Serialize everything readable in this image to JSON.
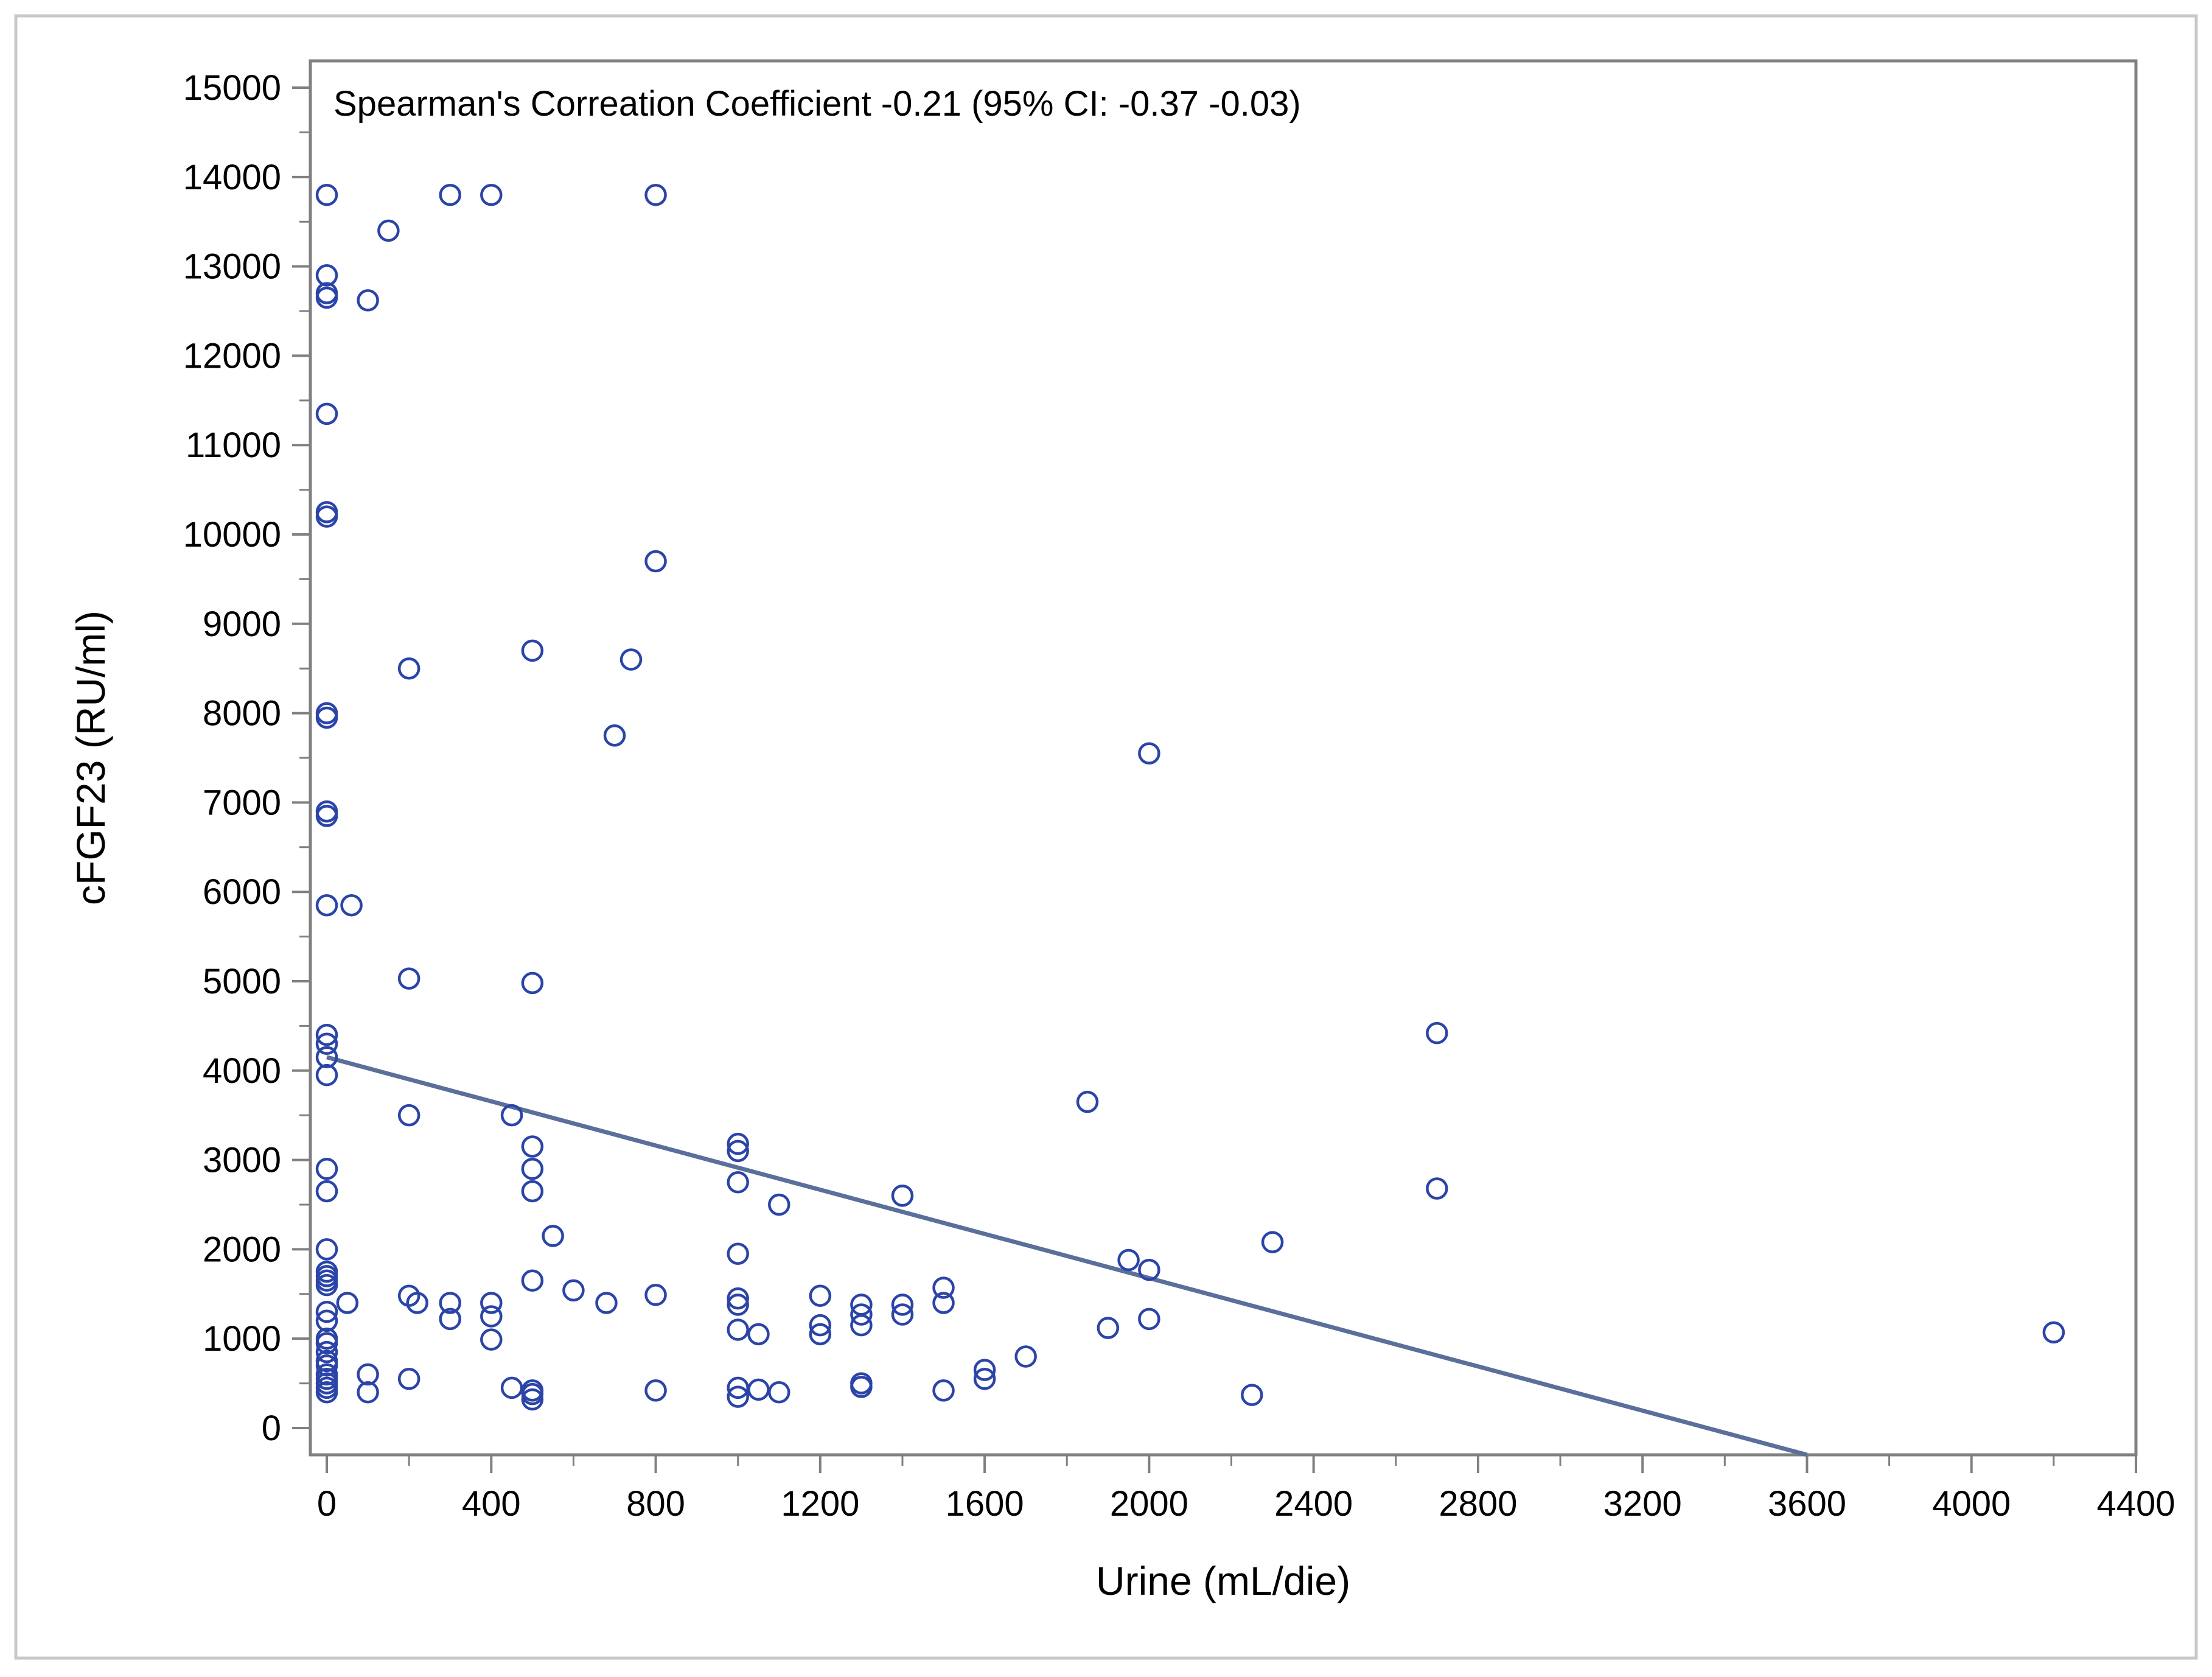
{
  "chart_data": {
    "type": "scatter",
    "title": "",
    "annotation": "Spearman's Correation Coefficient -0.21 (95% CI: -0.37 -0.03)",
    "xlabel": "Urine (mL/die)",
    "ylabel": "cFGF23 (RU/ml)",
    "xlim": [
      -40,
      4400
    ],
    "ylim": [
      -300,
      15300
    ],
    "x_ticks": [
      0,
      400,
      800,
      1200,
      1600,
      2000,
      2400,
      2800,
      3200,
      3600,
      4000,
      4400
    ],
    "x_tick_labels": [
      "0",
      "400",
      "800",
      "1200",
      "1600",
      "2000",
      "2400",
      "2800",
      "3200",
      "3600",
      "4000",
      "4400"
    ],
    "y_ticks": [
      0,
      1000,
      2000,
      3000,
      4000,
      5000,
      6000,
      7000,
      8000,
      9000,
      10000,
      11000,
      12000,
      13000,
      14000,
      15000
    ],
    "y_tick_labels": [
      "0",
      "1000",
      "2000",
      "3000",
      "4000",
      "5000",
      "6000",
      "7000",
      "8000",
      "9000",
      "10000",
      "11000",
      "12000",
      "13000",
      "14000",
      "15000"
    ],
    "grid": false,
    "legend": "none",
    "marker_color": "#2b44a8",
    "line_color": "#5a6f9a",
    "frame_color": "#808080",
    "regression_line": {
      "x": [
        0,
        3600
      ],
      "y": [
        4150,
        -300
      ]
    },
    "points": [
      {
        "x": 0,
        "y": 13800
      },
      {
        "x": 150,
        "y": 13400
      },
      {
        "x": 300,
        "y": 13800
      },
      {
        "x": 400,
        "y": 13800
      },
      {
        "x": 800,
        "y": 13800
      },
      {
        "x": 0,
        "y": 12900
      },
      {
        "x": 0,
        "y": 12700
      },
      {
        "x": 0,
        "y": 12650
      },
      {
        "x": 100,
        "y": 12620
      },
      {
        "x": 0,
        "y": 11350
      },
      {
        "x": 0,
        "y": 10250
      },
      {
        "x": 0,
        "y": 10200
      },
      {
        "x": 800,
        "y": 9700
      },
      {
        "x": 200,
        "y": 8500
      },
      {
        "x": 500,
        "y": 8700
      },
      {
        "x": 740,
        "y": 8600
      },
      {
        "x": 0,
        "y": 8000
      },
      {
        "x": 0,
        "y": 7950
      },
      {
        "x": 700,
        "y": 7750
      },
      {
        "x": 2000,
        "y": 7550
      },
      {
        "x": 0,
        "y": 6900
      },
      {
        "x": 0,
        "y": 6850
      },
      {
        "x": 0,
        "y": 5850
      },
      {
        "x": 60,
        "y": 5850
      },
      {
        "x": 200,
        "y": 5030
      },
      {
        "x": 500,
        "y": 4980
      },
      {
        "x": 2700,
        "y": 4420
      },
      {
        "x": 0,
        "y": 4400
      },
      {
        "x": 0,
        "y": 4300
      },
      {
        "x": 0,
        "y": 4150
      },
      {
        "x": 0,
        "y": 3950
      },
      {
        "x": 1850,
        "y": 3650
      },
      {
        "x": 200,
        "y": 3500
      },
      {
        "x": 450,
        "y": 3500
      },
      {
        "x": 500,
        "y": 3150
      },
      {
        "x": 1000,
        "y": 3180
      },
      {
        "x": 1000,
        "y": 3100
      },
      {
        "x": 0,
        "y": 2900
      },
      {
        "x": 500,
        "y": 2900
      },
      {
        "x": 1000,
        "y": 2750
      },
      {
        "x": 500,
        "y": 2650
      },
      {
        "x": 0,
        "y": 2650
      },
      {
        "x": 2700,
        "y": 2680
      },
      {
        "x": 1400,
        "y": 2600
      },
      {
        "x": 1100,
        "y": 2500
      },
      {
        "x": 550,
        "y": 2150
      },
      {
        "x": 2300,
        "y": 2080
      },
      {
        "x": 0,
        "y": 2000
      },
      {
        "x": 1000,
        "y": 1950
      },
      {
        "x": 1950,
        "y": 1880
      },
      {
        "x": 2000,
        "y": 1770
      },
      {
        "x": 0,
        "y": 1750
      },
      {
        "x": 0,
        "y": 1700
      },
      {
        "x": 0,
        "y": 1650
      },
      {
        "x": 0,
        "y": 1600
      },
      {
        "x": 500,
        "y": 1650
      },
      {
        "x": 600,
        "y": 1540
      },
      {
        "x": 1500,
        "y": 1570
      },
      {
        "x": 200,
        "y": 1480
      },
      {
        "x": 800,
        "y": 1490
      },
      {
        "x": 1200,
        "y": 1480
      },
      {
        "x": 50,
        "y": 1400
      },
      {
        "x": 220,
        "y": 1400
      },
      {
        "x": 300,
        "y": 1400
      },
      {
        "x": 400,
        "y": 1400
      },
      {
        "x": 680,
        "y": 1400
      },
      {
        "x": 1000,
        "y": 1450
      },
      {
        "x": 1000,
        "y": 1380
      },
      {
        "x": 1300,
        "y": 1380
      },
      {
        "x": 1400,
        "y": 1380
      },
      {
        "x": 1500,
        "y": 1400
      },
      {
        "x": 0,
        "y": 1300
      },
      {
        "x": 300,
        "y": 1220
      },
      {
        "x": 400,
        "y": 1250
      },
      {
        "x": 1300,
        "y": 1270
      },
      {
        "x": 1400,
        "y": 1270
      },
      {
        "x": 0,
        "y": 1200
      },
      {
        "x": 1200,
        "y": 1150
      },
      {
        "x": 1300,
        "y": 1150
      },
      {
        "x": 2000,
        "y": 1220
      },
      {
        "x": 1000,
        "y": 1100
      },
      {
        "x": 1050,
        "y": 1050
      },
      {
        "x": 1200,
        "y": 1050
      },
      {
        "x": 1900,
        "y": 1120
      },
      {
        "x": 4200,
        "y": 1070
      },
      {
        "x": 0,
        "y": 1000
      },
      {
        "x": 0,
        "y": 950
      },
      {
        "x": 400,
        "y": 990
      },
      {
        "x": 0,
        "y": 850
      },
      {
        "x": 1700,
        "y": 800
      },
      {
        "x": 0,
        "y": 750
      },
      {
        "x": 0,
        "y": 700
      },
      {
        "x": 1600,
        "y": 650
      },
      {
        "x": 0,
        "y": 600
      },
      {
        "x": 100,
        "y": 600
      },
      {
        "x": 0,
        "y": 550
      },
      {
        "x": 200,
        "y": 550
      },
      {
        "x": 1600,
        "y": 550
      },
      {
        "x": 0,
        "y": 500
      },
      {
        "x": 1300,
        "y": 500
      },
      {
        "x": 0,
        "y": 450
      },
      {
        "x": 450,
        "y": 450
      },
      {
        "x": 1000,
        "y": 450
      },
      {
        "x": 1050,
        "y": 430
      },
      {
        "x": 1300,
        "y": 460
      },
      {
        "x": 0,
        "y": 400
      },
      {
        "x": 100,
        "y": 400
      },
      {
        "x": 500,
        "y": 420
      },
      {
        "x": 800,
        "y": 420
      },
      {
        "x": 1100,
        "y": 400
      },
      {
        "x": 1500,
        "y": 420
      },
      {
        "x": 500,
        "y": 380
      },
      {
        "x": 2250,
        "y": 370
      },
      {
        "x": 500,
        "y": 320
      },
      {
        "x": 1000,
        "y": 350
      }
    ]
  }
}
